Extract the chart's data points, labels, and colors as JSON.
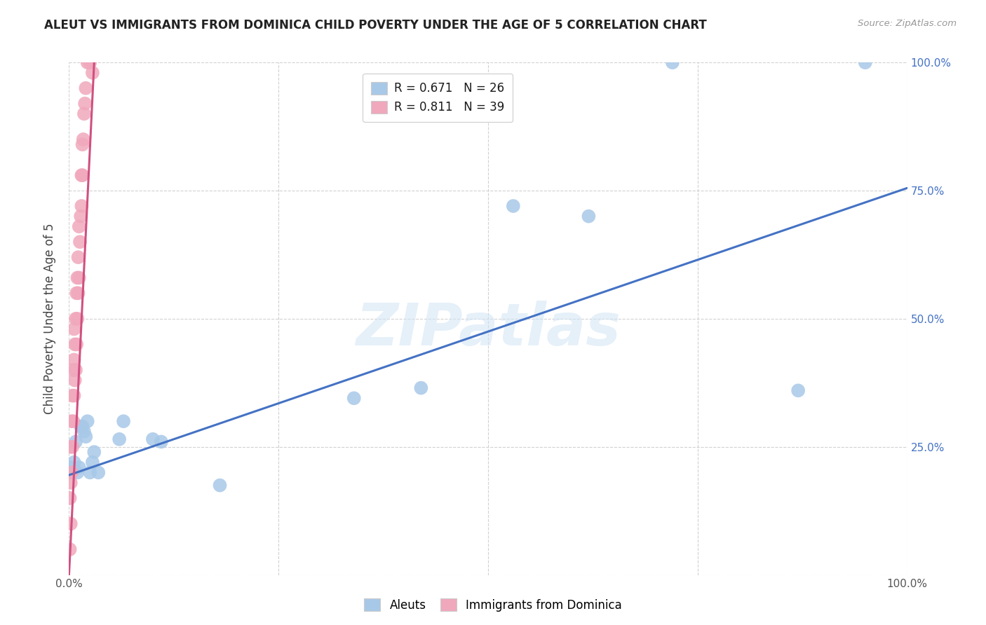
{
  "title": "ALEUT VS IMMIGRANTS FROM DOMINICA CHILD POVERTY UNDER THE AGE OF 5 CORRELATION CHART",
  "source": "Source: ZipAtlas.com",
  "ylabel": "Child Poverty Under the Age of 5",
  "xlim": [
    0,
    1.0
  ],
  "ylim": [
    0,
    1.0
  ],
  "aleuts_color": "#a8c8e8",
  "immigrants_color": "#f0a8bc",
  "line_aleuts_color": "#4472c4",
  "line_immigrants_color": "#d05080",
  "watermark": "ZIPatlas",
  "aleuts_x": [
    0.003,
    0.006,
    0.008,
    0.01,
    0.012,
    0.014,
    0.016,
    0.018,
    0.02,
    0.022,
    0.025,
    0.028,
    0.03,
    0.035,
    0.06,
    0.065,
    0.1,
    0.11,
    0.18,
    0.34,
    0.42,
    0.53,
    0.62,
    0.72,
    0.87,
    0.95
  ],
  "aleuts_y": [
    0.21,
    0.22,
    0.26,
    0.2,
    0.21,
    0.29,
    0.29,
    0.28,
    0.27,
    0.3,
    0.2,
    0.22,
    0.24,
    0.2,
    0.265,
    0.3,
    0.265,
    0.26,
    0.175,
    0.345,
    0.365,
    0.72,
    0.7,
    1.0,
    0.36,
    1.0
  ],
  "immigrants_x": [
    0.001,
    0.001,
    0.002,
    0.002,
    0.002,
    0.003,
    0.003,
    0.004,
    0.004,
    0.005,
    0.005,
    0.006,
    0.006,
    0.006,
    0.007,
    0.007,
    0.008,
    0.008,
    0.009,
    0.009,
    0.01,
    0.01,
    0.011,
    0.011,
    0.012,
    0.012,
    0.013,
    0.014,
    0.015,
    0.015,
    0.016,
    0.016,
    0.017,
    0.018,
    0.019,
    0.02,
    0.022,
    0.025,
    0.028
  ],
  "immigrants_y": [
    0.05,
    0.15,
    0.1,
    0.18,
    0.25,
    0.2,
    0.3,
    0.25,
    0.35,
    0.3,
    0.4,
    0.35,
    0.42,
    0.48,
    0.38,
    0.45,
    0.4,
    0.5,
    0.45,
    0.55,
    0.5,
    0.58,
    0.55,
    0.62,
    0.58,
    0.68,
    0.65,
    0.7,
    0.72,
    0.78,
    0.78,
    0.84,
    0.85,
    0.9,
    0.92,
    0.95,
    1.0,
    1.0,
    0.98
  ],
  "aleuts_line_x0": 0.0,
  "aleuts_line_y0": 0.195,
  "aleuts_line_x1": 1.0,
  "aleuts_line_y1": 0.755,
  "immigrants_line_x0": 0.0,
  "immigrants_line_y0": 0.0,
  "immigrants_line_x1": 0.03,
  "immigrants_line_y1": 1.0
}
